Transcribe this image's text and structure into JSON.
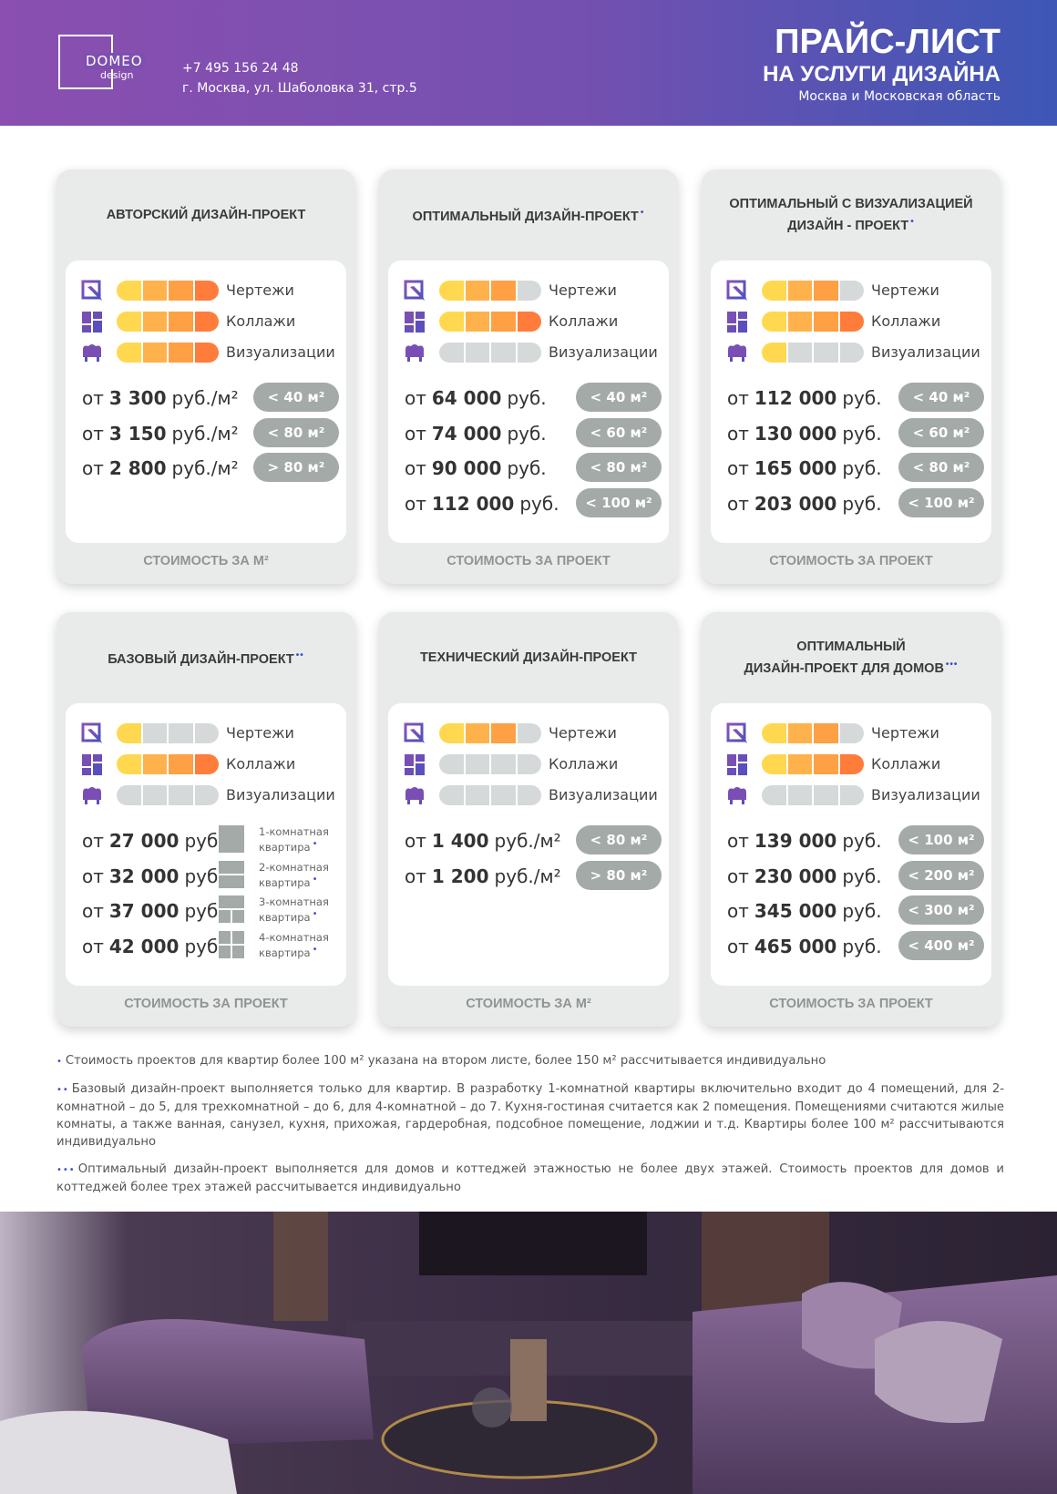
{
  "header": {
    "logo_name": "DOMEO",
    "logo_sub": "design",
    "phone": "+7 495 156 24 48",
    "address": "г. Москва, ул. Шаболовка 31, стр.5",
    "title_line1": "ПРАЙС-ЛИСТ",
    "title_line2": "НА УСЛУГИ ДИЗАЙНА",
    "region": "Москва и Московская область"
  },
  "cards": [
    {
      "title": [
        "АВТОРСКИЙ ДИЗАЙН-ПРОЕКТ"
      ],
      "marker": null,
      "features": [
        {
          "label": "Чертежи",
          "level": 4
        },
        {
          "label": "Коллажи",
          "level": 4
        },
        {
          "label": "Визуализации",
          "level": 4
        }
      ],
      "prices": [
        {
          "prefix": "от",
          "amount": "3 300",
          "unit": "руб./м²",
          "tag": "< 40 м²"
        },
        {
          "prefix": "от",
          "amount": "3 150",
          "unit": "руб./м²",
          "tag": "< 80 м²"
        },
        {
          "prefix": "от",
          "amount": "2 800",
          "unit": "руб./м²",
          "tag": "> 80 м²"
        }
      ],
      "footer": "СТОИМОСТЬ ЗА М²"
    },
    {
      "title": [
        "ОПТИМАЛЬНЫЙ ДИЗАЙН-ПРОЕКТ"
      ],
      "marker": "•",
      "features": [
        {
          "label": "Чертежи",
          "level": 3
        },
        {
          "label": "Коллажи",
          "level": 4
        },
        {
          "label": "Визуализации",
          "level": 0
        }
      ],
      "prices": [
        {
          "prefix": "от",
          "amount": "64 000",
          "unit": "руб.",
          "tag": "< 40 м²"
        },
        {
          "prefix": "от",
          "amount": "74 000",
          "unit": "руб.",
          "tag": "< 60 м²"
        },
        {
          "prefix": "от",
          "amount": "90 000",
          "unit": "руб.",
          "tag": "< 80 м²"
        },
        {
          "prefix": "от",
          "amount": "112 000",
          "unit": "руб.",
          "tag": "< 100 м²"
        }
      ],
      "footer": "СТОИМОСТЬ ЗА ПРОЕКТ"
    },
    {
      "title": [
        "ОПТИМАЛЬНЫЙ С ВИЗУАЛИЗАЦИЕЙ",
        "ДИЗАЙН - ПРОЕКТ"
      ],
      "marker": "•",
      "features": [
        {
          "label": "Чертежи",
          "level": 3
        },
        {
          "label": "Коллажи",
          "level": 4
        },
        {
          "label": "Визуализации",
          "level": 1
        }
      ],
      "prices": [
        {
          "prefix": "от",
          "amount": "112 000",
          "unit": "руб.",
          "tag": "< 40 м²"
        },
        {
          "prefix": "от",
          "amount": "130 000",
          "unit": "руб.",
          "tag": "< 60 м²"
        },
        {
          "prefix": "от",
          "amount": "165 000",
          "unit": "руб.",
          "tag": "< 80 м²"
        },
        {
          "prefix": "от",
          "amount": "203 000",
          "unit": "руб.",
          "tag": "< 100 м²"
        }
      ],
      "footer": "СТОИМОСТЬ ЗА ПРОЕКТ"
    },
    {
      "title": [
        "БАЗОВЫЙ ДИЗАЙН-ПРОЕКТ"
      ],
      "marker": "••",
      "features": [
        {
          "label": "Чертежи",
          "level": 1
        },
        {
          "label": "Коллажи",
          "level": 4
        },
        {
          "label": "Визуализации",
          "level": 0
        }
      ],
      "prices": [
        {
          "prefix": "от",
          "amount": "27 000",
          "unit": "руб.",
          "room": [
            "1-комнатная",
            "квартира"
          ],
          "room_marker": "•"
        },
        {
          "prefix": "от",
          "amount": "32 000",
          "unit": "руб.",
          "room": [
            "2-комнатная",
            "квартира"
          ],
          "room_marker": "•"
        },
        {
          "prefix": "от",
          "amount": "37 000",
          "unit": "руб.",
          "room": [
            "3-комнатная",
            "квартира"
          ],
          "room_marker": "•"
        },
        {
          "prefix": "от",
          "amount": "42 000",
          "unit": "руб.",
          "room": [
            "4-комнатная",
            "квартира"
          ],
          "room_marker": "•"
        }
      ],
      "footer": "СТОИМОСТЬ ЗА ПРОЕКТ"
    },
    {
      "title": [
        "ТЕХНИЧЕСКИЙ ДИЗАЙН-ПРОЕКТ"
      ],
      "marker": null,
      "features": [
        {
          "label": "Чертежи",
          "level": 3
        },
        {
          "label": "Коллажи",
          "level": 0
        },
        {
          "label": "Визуализации",
          "level": 0
        }
      ],
      "prices": [
        {
          "prefix": "от",
          "amount": "1 400",
          "unit": "руб./м²",
          "tag": "< 80 м²"
        },
        {
          "prefix": "от",
          "amount": "1 200",
          "unit": "руб./м²",
          "tag": "> 80 м²"
        }
      ],
      "footer": "СТОИМОСТЬ ЗА М²"
    },
    {
      "title": [
        "ОПТИМАЛЬНЫЙ",
        "ДИЗАЙН-ПРОЕКТ ДЛЯ ДОМОВ"
      ],
      "marker": "•••",
      "features": [
        {
          "label": "Чертежи",
          "level": 3
        },
        {
          "label": "Коллажи",
          "level": 4
        },
        {
          "label": "Визуализации",
          "level": 0
        }
      ],
      "prices": [
        {
          "prefix": "от",
          "amount": "139 000",
          "unit": "руб.",
          "tag": "< 100 м²"
        },
        {
          "prefix": "от",
          "amount": "230 000",
          "unit": "руб.",
          "tag": "< 200 м²"
        },
        {
          "prefix": "от",
          "amount": "345 000",
          "unit": "руб.",
          "tag": "< 300 м²"
        },
        {
          "prefix": "от",
          "amount": "465 000",
          "unit": "руб.",
          "tag": "< 400 м²"
        }
      ],
      "footer": "СТОИМОСТЬ ЗА ПРОЕКТ"
    }
  ],
  "footnotes": [
    {
      "marker": "•",
      "text": "Стоимость проектов для квартир более 100 м² указана на втором листе, более 150 м² рассчитывается индивидуально"
    },
    {
      "marker": "••",
      "text": "Базовый дизайн-проект выполняется только для квартир. В разработку 1-комнатной квартиры включительно входит до 4 помещений, для 2-комнатной – до 5, для трехкомнатной – до 6, для 4-комнатной – до 7. Кухня-гостиная считается как 2 помещения. Помещениями считаются жилые комнаты, а также ванная, санузел, кухня, прихожая, гардеробная, подсобное помещение, лоджии и т.д. Квартиры более 100 м² рассчитываются индивидуально"
    },
    {
      "marker": "•••",
      "text": "Оптимальный дизайн-проект выполняется для домов и коттеджей этажностью не более двух этажей. Стоимость проектов для домов и коттеджей более трех  этажей рассчитывается индивидуально"
    }
  ]
}
